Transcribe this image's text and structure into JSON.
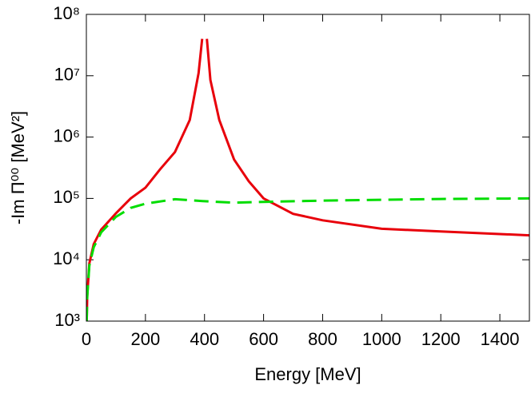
{
  "chart_data": {
    "type": "line",
    "xlabel": "Energy [MeV]",
    "ylabel": "-Im Π⁰⁰ [MeV²]",
    "xlim": [
      0,
      1500
    ],
    "xticks": [
      0,
      200,
      400,
      600,
      800,
      1000,
      1200,
      1400
    ],
    "ylim": [
      1000,
      100000000
    ],
    "yscale": "log",
    "yticks": [
      {
        "value": 1000,
        "label": "10³"
      },
      {
        "value": 10000,
        "label": "10⁴"
      },
      {
        "value": 100000,
        "label": "10⁵"
      },
      {
        "value": 1000000,
        "label": "10⁶"
      },
      {
        "value": 10000000,
        "label": "10⁷"
      },
      {
        "value": 100000000,
        "label": "10⁸"
      }
    ],
    "series": [
      {
        "color": "#e8000b",
        "dash": false,
        "x": [
          1,
          3,
          10,
          25,
          50,
          100,
          150,
          200,
          250,
          300,
          350,
          380,
          392,
          400,
          408,
          420,
          450,
          500,
          550,
          600,
          700,
          800,
          1000,
          1200,
          1500
        ],
        "values": [
          1000,
          2600,
          8700,
          18000,
          31000,
          57000,
          100000,
          150000,
          300000,
          570000,
          1900000,
          11000000,
          40000000,
          null,
          40000000,
          8500000,
          1900000,
          430000,
          190000,
          100000,
          56000,
          44000,
          32000,
          29000,
          25000
        ]
      },
      {
        "color": "#00dd00",
        "dash": true,
        "x": [
          1,
          3,
          10,
          25,
          50,
          100,
          150,
          200,
          300,
          400,
          500,
          600,
          800,
          1000,
          1200,
          1500
        ],
        "values": [
          1000,
          2500,
          8000,
          16000,
          28000,
          50000,
          70000,
          82000,
          97000,
          90000,
          85000,
          88000,
          92000,
          95000,
          98000,
          100000
        ]
      }
    ]
  }
}
